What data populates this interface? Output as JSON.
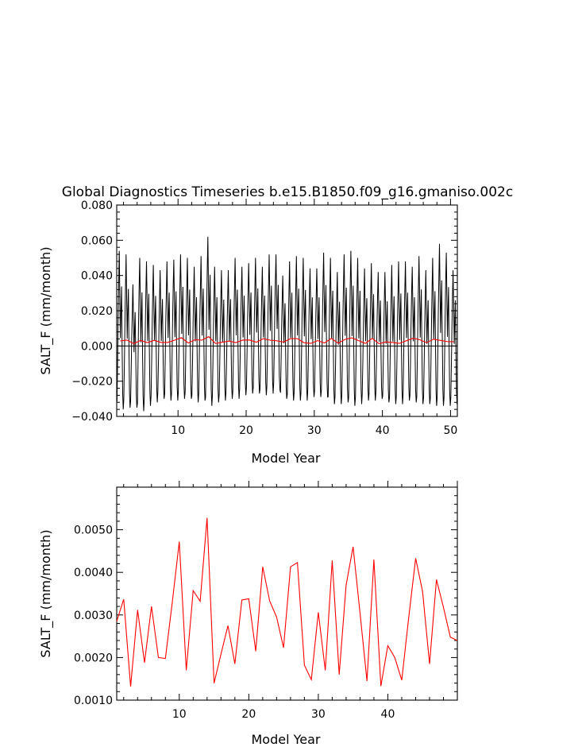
{
  "chart_data": [
    {
      "type": "line",
      "title": "Global Diagnostics Timeseries b.e15.B1850.f09_g16.gmaniso.002c",
      "xlabel": "Model Year",
      "ylabel": "SALT_F (mm/month)",
      "xlim": [
        1,
        51
      ],
      "ylim": [
        -0.04,
        0.08
      ],
      "xticks": [
        10,
        20,
        30,
        40,
        50
      ],
      "yticks": [
        -0.04,
        -0.02,
        0.0,
        0.02,
        0.04,
        0.06,
        0.08
      ],
      "ytick_labels": [
        "−0.040",
        "−0.020",
        "0.000",
        "0.020",
        "0.040",
        "0.060",
        "0.080"
      ],
      "zero_line": true,
      "series": [
        {
          "color": "#000000",
          "style": "monthly",
          "annual_peaks": [
            0.054,
            0.052,
            0.035,
            0.05,
            0.048,
            0.046,
            0.043,
            0.048,
            0.049,
            0.052,
            0.05,
            0.045,
            0.051,
            0.062,
            0.045,
            0.043,
            0.043,
            0.05,
            0.045,
            0.047,
            0.05,
            0.045,
            0.052,
            0.052,
            0.04,
            0.048,
            0.051,
            0.05,
            0.044,
            0.044,
            0.053,
            0.05,
            0.042,
            0.052,
            0.054,
            0.05,
            0.044,
            0.047,
            0.042,
            0.042,
            0.046,
            0.048,
            0.048,
            0.045,
            0.051,
            0.043,
            0.05,
            0.058,
            0.053,
            0.043
          ],
          "annual_troughs": [
            -0.036,
            -0.035,
            -0.035,
            -0.037,
            -0.034,
            -0.032,
            -0.03,
            -0.031,
            -0.031,
            -0.03,
            -0.03,
            -0.032,
            -0.031,
            -0.034,
            -0.032,
            -0.031,
            -0.03,
            -0.03,
            -0.028,
            -0.027,
            -0.027,
            -0.028,
            -0.027,
            -0.025,
            -0.03,
            -0.031,
            -0.031,
            -0.031,
            -0.029,
            -0.029,
            -0.029,
            -0.033,
            -0.033,
            -0.032,
            -0.034,
            -0.033,
            -0.031,
            -0.031,
            -0.03,
            -0.032,
            -0.033,
            -0.033,
            -0.031,
            -0.032,
            -0.033,
            -0.033,
            -0.034,
            -0.034,
            -0.034,
            -0.033
          ]
        },
        {
          "color": "#ff0000",
          "style": "annual",
          "x": [
            1,
            2,
            3,
            4,
            5,
            6,
            7,
            8,
            9,
            10,
            11,
            12,
            13,
            14,
            15,
            16,
            17,
            18,
            19,
            20,
            21,
            22,
            23,
            24,
            25,
            26,
            27,
            28,
            29,
            30,
            31,
            32,
            33,
            34,
            35,
            36,
            37,
            38,
            39,
            40,
            41,
            42,
            43,
            44,
            45,
            46,
            47,
            48,
            49,
            50
          ],
          "values": [
            0.00285,
            0.00337,
            0.00132,
            0.00312,
            0.00188,
            0.0032,
            0.002,
            0.00198,
            0.0033,
            0.00472,
            0.0017,
            0.00357,
            0.00332,
            0.00528,
            0.0014,
            0.00208,
            0.00275,
            0.00185,
            0.00335,
            0.00338,
            0.00215,
            0.00413,
            0.00333,
            0.00295,
            0.00223,
            0.00413,
            0.00423,
            0.00182,
            0.00148,
            0.00306,
            0.0017,
            0.00428,
            0.0016,
            0.0037,
            0.0046,
            0.00305,
            0.00145,
            0.0043,
            0.00133,
            0.00228,
            0.002,
            0.00147,
            0.00293,
            0.00433,
            0.00355,
            0.00185,
            0.00383,
            0.00318,
            0.00248,
            0.0024
          ]
        }
      ]
    },
    {
      "type": "line",
      "title": "",
      "xlabel": "Model Year",
      "ylabel": "SALT_F (mm/month)",
      "xlim": [
        1,
        50
      ],
      "ylim": [
        0.001,
        0.006
      ],
      "xticks": [
        10,
        20,
        30,
        40
      ],
      "yticks": [
        0.001,
        0.002,
        0.003,
        0.004,
        0.005
      ],
      "ytick_labels": [
        "0.0010",
        "0.0020",
        "0.0030",
        "0.0040",
        "0.0050"
      ],
      "series": [
        {
          "color": "#ff0000",
          "x": [
            1,
            2,
            3,
            4,
            5,
            6,
            7,
            8,
            9,
            10,
            11,
            12,
            13,
            14,
            15,
            16,
            17,
            18,
            19,
            20,
            21,
            22,
            23,
            24,
            25,
            26,
            27,
            28,
            29,
            30,
            31,
            32,
            33,
            34,
            35,
            36,
            37,
            38,
            39,
            40,
            41,
            42,
            43,
            44,
            45,
            46,
            47,
            48,
            49,
            50
          ],
          "values": [
            0.00285,
            0.00337,
            0.00132,
            0.00312,
            0.00188,
            0.0032,
            0.002,
            0.00198,
            0.0033,
            0.00472,
            0.0017,
            0.00357,
            0.00332,
            0.00528,
            0.0014,
            0.00208,
            0.00275,
            0.00185,
            0.00335,
            0.00338,
            0.00215,
            0.00413,
            0.00333,
            0.00295,
            0.00223,
            0.00413,
            0.00423,
            0.00182,
            0.00148,
            0.00306,
            0.0017,
            0.00428,
            0.0016,
            0.0037,
            0.0046,
            0.00305,
            0.00145,
            0.0043,
            0.00133,
            0.00228,
            0.002,
            0.00147,
            0.00293,
            0.00433,
            0.00355,
            0.00185,
            0.00383,
            0.00318,
            0.00248,
            0.0024
          ]
        }
      ]
    }
  ]
}
